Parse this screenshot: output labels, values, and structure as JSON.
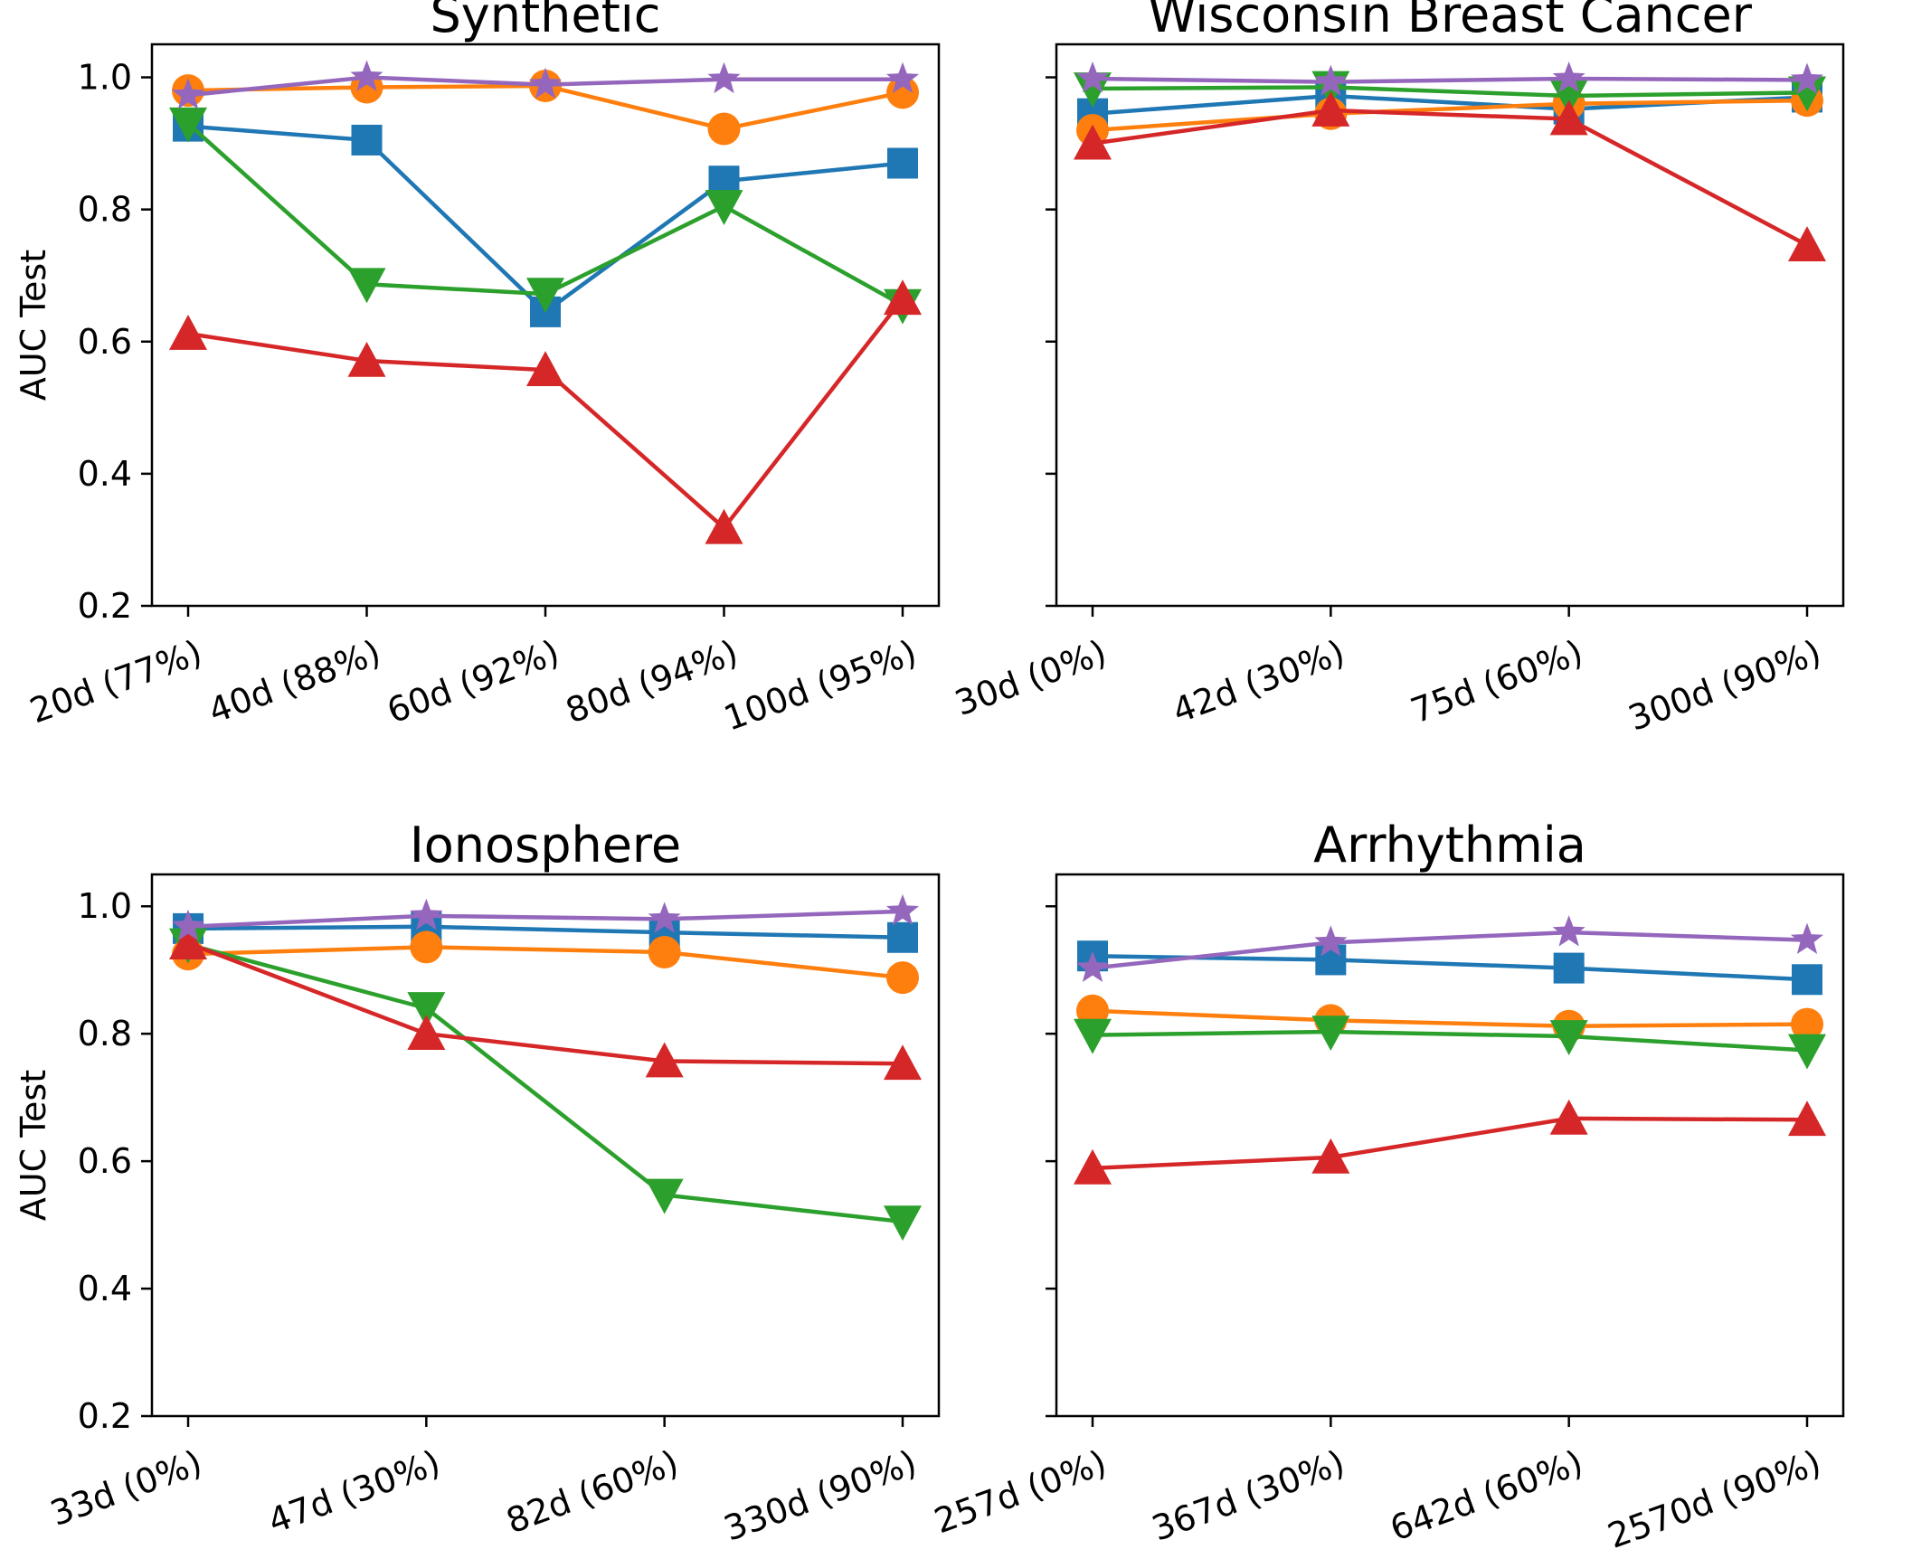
{
  "chart_data": [
    {
      "type": "line",
      "title": "Synthetic",
      "ylabel": "AUC Test",
      "xlabel": "",
      "ylim": [
        0.2,
        1.05
      ],
      "yticks": [
        "0.2",
        "0.4",
        "0.6",
        "0.8",
        "1.0"
      ],
      "categories": [
        "20d (77%)",
        "40d (88%)",
        "60d (92%)",
        "80d (94%)",
        "100d (95%)"
      ],
      "series": [
        {
          "name": "blue-square",
          "color": "#1f77b4",
          "marker": "square",
          "values": [
            0.926,
            0.905,
            0.645,
            0.843,
            0.87
          ]
        },
        {
          "name": "orange-circle",
          "color": "#ff7f0e",
          "marker": "circle",
          "values": [
            0.98,
            0.985,
            0.987,
            0.922,
            0.977
          ]
        },
        {
          "name": "green-triangle-down",
          "color": "#2ca02c",
          "marker": "triangle-down",
          "values": [
            0.93,
            0.687,
            0.672,
            0.805,
            0.655
          ]
        },
        {
          "name": "red-triangle-up",
          "color": "#d62728",
          "marker": "triangle-up",
          "values": [
            0.612,
            0.571,
            0.557,
            0.318,
            0.665
          ]
        },
        {
          "name": "purple-star",
          "color": "#9467bd",
          "marker": "star",
          "values": [
            0.973,
            1.0,
            0.989,
            0.997,
            0.997
          ]
        }
      ]
    },
    {
      "type": "line",
      "title": "Wisconsin Breast Cancer",
      "ylabel": "",
      "xlabel": "",
      "ylim": [
        0.2,
        1.05
      ],
      "yticks": [],
      "categories": [
        "30d (0%)",
        "42d (30%)",
        "75d (60%)",
        "300d (90%)"
      ],
      "series": [
        {
          "name": "blue-square",
          "color": "#1f77b4",
          "marker": "square",
          "values": [
            0.945,
            0.972,
            0.952,
            0.97
          ]
        },
        {
          "name": "orange-circle",
          "color": "#ff7f0e",
          "marker": "circle",
          "values": [
            0.92,
            0.945,
            0.96,
            0.965
          ]
        },
        {
          "name": "green-triangle-down",
          "color": "#2ca02c",
          "marker": "triangle-down",
          "values": [
            0.983,
            0.985,
            0.972,
            0.977
          ]
        },
        {
          "name": "red-triangle-up",
          "color": "#d62728",
          "marker": "triangle-up",
          "values": [
            0.9,
            0.95,
            0.937,
            0.746
          ]
        },
        {
          "name": "purple-star",
          "color": "#9467bd",
          "marker": "star",
          "values": [
            0.998,
            0.993,
            0.998,
            0.996
          ]
        }
      ]
    },
    {
      "type": "line",
      "title": "Ionosphere",
      "ylabel": "AUC Test",
      "xlabel": "",
      "ylim": [
        0.2,
        1.05
      ],
      "yticks": [
        "0.2",
        "0.4",
        "0.6",
        "0.8",
        "1.0"
      ],
      "categories": [
        "33d (0%)",
        "47d (30%)",
        "82d (60%)",
        "330d (90%)"
      ],
      "series": [
        {
          "name": "blue-square",
          "color": "#1f77b4",
          "marker": "square",
          "values": [
            0.965,
            0.968,
            0.959,
            0.951
          ]
        },
        {
          "name": "orange-circle",
          "color": "#ff7f0e",
          "marker": "circle",
          "values": [
            0.925,
            0.936,
            0.928,
            0.888
          ]
        },
        {
          "name": "green-triangle-down",
          "color": "#2ca02c",
          "marker": "triangle-down",
          "values": [
            0.94,
            0.84,
            0.547,
            0.505
          ]
        },
        {
          "name": "red-triangle-up",
          "color": "#d62728",
          "marker": "triangle-up",
          "values": [
            0.942,
            0.8,
            0.757,
            0.753
          ]
        },
        {
          "name": "purple-star",
          "color": "#9467bd",
          "marker": "star",
          "values": [
            0.968,
            0.985,
            0.98,
            0.992
          ]
        }
      ]
    },
    {
      "type": "line",
      "title": "Arrhythmia",
      "ylabel": "",
      "xlabel": "",
      "ylim": [
        0.2,
        1.05
      ],
      "yticks": [],
      "categories": [
        "257d (0%)",
        "367d (30%)",
        "642d (60%)",
        "2570d (90%)"
      ],
      "series": [
        {
          "name": "blue-square",
          "color": "#1f77b4",
          "marker": "square",
          "values": [
            0.922,
            0.916,
            0.903,
            0.885
          ]
        },
        {
          "name": "orange-circle",
          "color": "#ff7f0e",
          "marker": "circle",
          "values": [
            0.836,
            0.821,
            0.812,
            0.815
          ]
        },
        {
          "name": "green-triangle-down",
          "color": "#2ca02c",
          "marker": "triangle-down",
          "values": [
            0.798,
            0.803,
            0.796,
            0.774
          ]
        },
        {
          "name": "red-triangle-up",
          "color": "#d62728",
          "marker": "triangle-up",
          "values": [
            0.589,
            0.606,
            0.667,
            0.665
          ]
        },
        {
          "name": "purple-star",
          "color": "#9467bd",
          "marker": "star",
          "values": [
            0.903,
            0.943,
            0.959,
            0.947
          ]
        }
      ]
    }
  ]
}
